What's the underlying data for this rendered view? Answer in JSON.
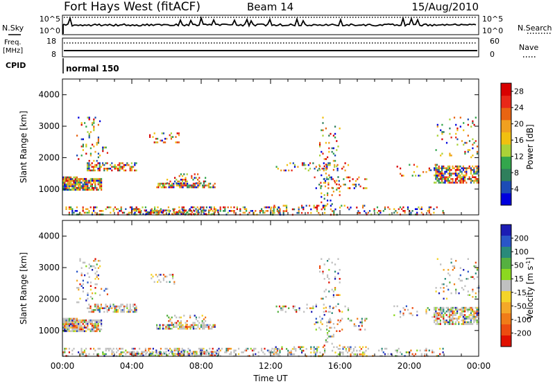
{
  "header": {
    "site": "Fort Hays West (fitACF)",
    "beam": "Beam 14",
    "date": "15/Aug/2010"
  },
  "summary_panel": {
    "left_labels": {
      "nsky": "N.Sky",
      "freq_line1": "Freq.",
      "freq_line2": "[MHz]",
      "cpid": "CPID"
    },
    "right_labels": {
      "nsearch": "N.Search",
      "nave": "Nave"
    },
    "nsky_axis": {
      "top": "10^5",
      "bottom": "10^0"
    },
    "freq_axis": {
      "top": "18",
      "bottom": "8"
    },
    "nave_axis": {
      "top": "60",
      "bottom": "0"
    },
    "cpid_text": "normal 150"
  },
  "chart_data": [
    {
      "type": "heatmap",
      "panel": "power",
      "xlabel": "",
      "ylabel": "Slant Range [km]",
      "x_range_hours": [
        0,
        24
      ],
      "ylim": [
        180,
        4500
      ],
      "y_ticks": [
        "1000",
        "2000",
        "3000",
        "4000"
      ],
      "colorbar": {
        "label": "Power [dB]",
        "ticks": [
          "4",
          "8",
          "12",
          "16",
          "20",
          "24",
          "28"
        ],
        "range": [
          0,
          30
        ],
        "colors": [
          "#0000dd",
          "#1d4cb6",
          "#2f7f5c",
          "#33a64c",
          "#aad238",
          "#f1c010",
          "#f0a020",
          "#e86412",
          "#e82818",
          "#d80000"
        ]
      },
      "scatter_regions": [
        {
          "t": [
            0.0,
            2.2
          ],
          "r": [
            1000,
            1350
          ],
          "intensity": 0.85
        },
        {
          "t": [
            0.0,
            0.8
          ],
          "r": [
            1150,
            1400
          ],
          "intensity": 0.8
        },
        {
          "t": [
            1.4,
            4.3
          ],
          "r": [
            1600,
            1850
          ],
          "intensity": 0.6
        },
        {
          "t": [
            0.8,
            2.2
          ],
          "r": [
            1900,
            3300
          ],
          "intensity": 0.15
        },
        {
          "t": [
            2.2,
            2.6
          ],
          "r": [
            2100,
            2350
          ],
          "intensity": 0.2
        },
        {
          "t": [
            5.0,
            6.8
          ],
          "r": [
            2500,
            2800
          ],
          "intensity": 0.2
        },
        {
          "t": [
            5.4,
            8.8
          ],
          "r": [
            1050,
            1200
          ],
          "intensity": 0.7
        },
        {
          "t": [
            6.0,
            8.2
          ],
          "r": [
            1200,
            1500
          ],
          "intensity": 0.3
        },
        {
          "t": [
            0.0,
            12.5
          ],
          "r": [
            200,
            450
          ],
          "intensity": 0.35
        },
        {
          "t": [
            4.0,
            9.0
          ],
          "r": [
            200,
            350
          ],
          "intensity": 0.55
        },
        {
          "t": [
            12.3,
            16.5
          ],
          "r": [
            1600,
            1850
          ],
          "intensity": 0.2
        },
        {
          "t": [
            14.5,
            17.5
          ],
          "r": [
            1000,
            1400
          ],
          "intensity": 0.2
        },
        {
          "t": [
            12.0,
            17.5
          ],
          "r": [
            200,
            500
          ],
          "intensity": 0.25
        },
        {
          "t": [
            14.8,
            16.0
          ],
          "r": [
            500,
            3300
          ],
          "intensity": 0.1
        },
        {
          "t": [
            17.5,
            22.0
          ],
          "r": [
            200,
            450
          ],
          "intensity": 0.2
        },
        {
          "t": [
            21.4,
            24.0
          ],
          "r": [
            1200,
            1750
          ],
          "intensity": 0.7
        },
        {
          "t": [
            19.0,
            22.0
          ],
          "r": [
            1400,
            1800
          ],
          "intensity": 0.1
        },
        {
          "t": [
            21.5,
            24.0
          ],
          "r": [
            2000,
            3300
          ],
          "intensity": 0.08
        }
      ]
    },
    {
      "type": "heatmap",
      "panel": "velocity",
      "xlabel": "Time UT",
      "ylabel": "Slant Range [km]",
      "x_range_hours": [
        0,
        24
      ],
      "x_ticks": [
        "00:00",
        "04:00",
        "08:00",
        "12:00",
        "16:00",
        "20:00",
        "00:00"
      ],
      "ylim": [
        180,
        4500
      ],
      "y_ticks": [
        "1000",
        "2000",
        "3000",
        "4000"
      ],
      "colorbar": {
        "label": "Velocity [m s^-1]",
        "ticks": [
          "200",
          "100",
          "50",
          "15",
          "-15",
          "-50",
          "-100",
          "-200"
        ],
        "range": [
          -250,
          250
        ],
        "colors": [
          "#1c1cb4",
          "#2a56c8",
          "#2a8a7a",
          "#55b040",
          "#8cd820",
          "#c0c0c0",
          "#f4d428",
          "#f4a828",
          "#f07c18",
          "#ec4c10",
          "#e01000"
        ]
      },
      "scatter_regions": [
        {
          "t": [
            0.0,
            2.2
          ],
          "r": [
            1000,
            1350
          ],
          "intensity": 0.85
        },
        {
          "t": [
            0.0,
            0.8
          ],
          "r": [
            1150,
            1400
          ],
          "intensity": 0.8
        },
        {
          "t": [
            1.4,
            4.3
          ],
          "r": [
            1600,
            1850
          ],
          "intensity": 0.6
        },
        {
          "t": [
            0.8,
            2.2
          ],
          "r": [
            1900,
            3300
          ],
          "intensity": 0.15
        },
        {
          "t": [
            2.2,
            2.6
          ],
          "r": [
            2100,
            2350
          ],
          "intensity": 0.2
        },
        {
          "t": [
            5.0,
            6.8
          ],
          "r": [
            2500,
            2800
          ],
          "intensity": 0.2
        },
        {
          "t": [
            5.4,
            8.8
          ],
          "r": [
            1050,
            1200
          ],
          "intensity": 0.7
        },
        {
          "t": [
            6.0,
            8.2
          ],
          "r": [
            1200,
            1500
          ],
          "intensity": 0.3
        },
        {
          "t": [
            0.0,
            12.5
          ],
          "r": [
            200,
            450
          ],
          "intensity": 0.35
        },
        {
          "t": [
            4.0,
            9.0
          ],
          "r": [
            200,
            350
          ],
          "intensity": 0.55
        },
        {
          "t": [
            12.3,
            16.5
          ],
          "r": [
            1600,
            1850
          ],
          "intensity": 0.2
        },
        {
          "t": [
            14.5,
            17.5
          ],
          "r": [
            1000,
            1400
          ],
          "intensity": 0.2
        },
        {
          "t": [
            12.0,
            17.5
          ],
          "r": [
            200,
            500
          ],
          "intensity": 0.25
        },
        {
          "t": [
            14.8,
            16.0
          ],
          "r": [
            500,
            3300
          ],
          "intensity": 0.1
        },
        {
          "t": [
            17.5,
            22.0
          ],
          "r": [
            200,
            450
          ],
          "intensity": 0.2
        },
        {
          "t": [
            21.4,
            24.0
          ],
          "r": [
            1200,
            1750
          ],
          "intensity": 0.7
        },
        {
          "t": [
            19.0,
            22.0
          ],
          "r": [
            1400,
            1800
          ],
          "intensity": 0.1
        },
        {
          "t": [
            21.5,
            24.0
          ],
          "r": [
            2000,
            3300
          ],
          "intensity": 0.08
        }
      ]
    }
  ]
}
